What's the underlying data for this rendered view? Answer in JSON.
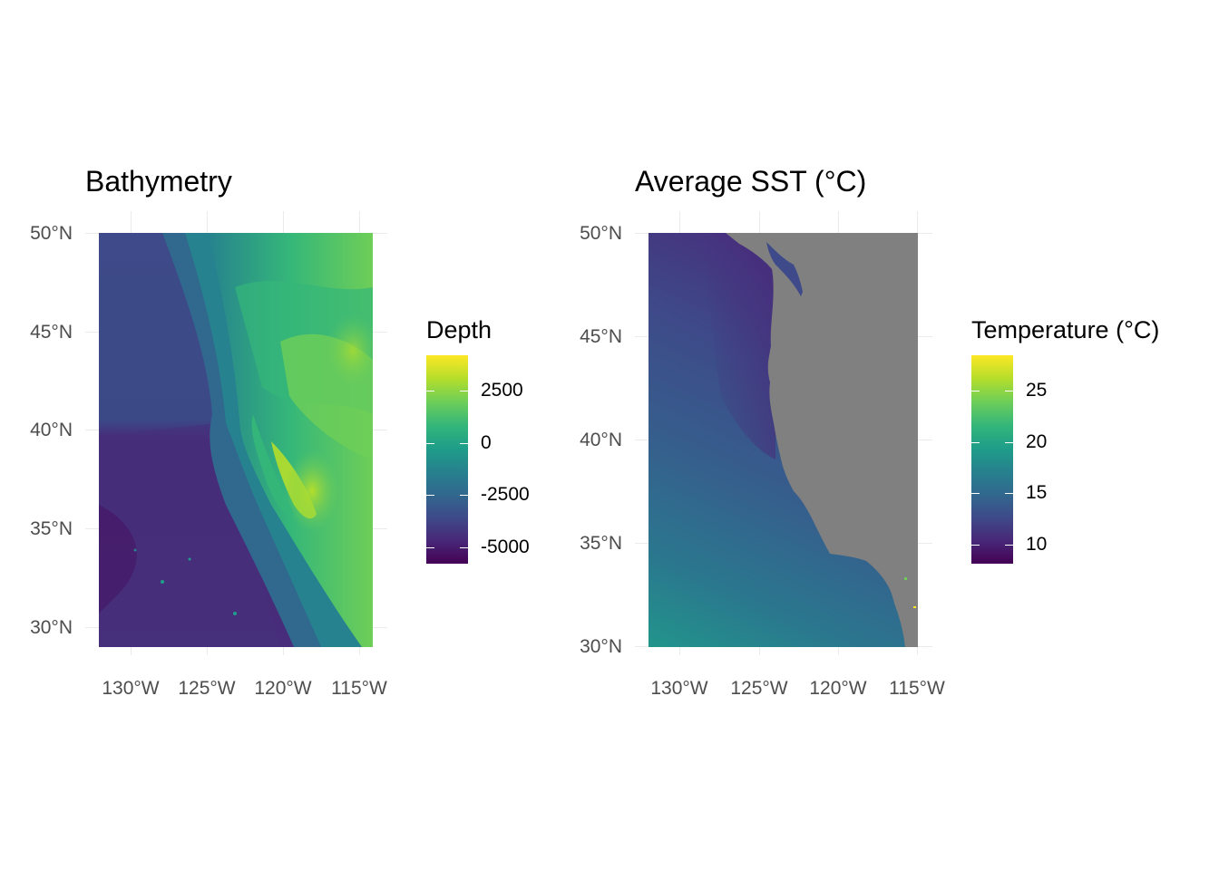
{
  "colors": {
    "viridis": [
      "#440154",
      "#482878",
      "#3e4a89",
      "#31688e",
      "#26828e",
      "#1f9e89",
      "#35b779",
      "#6ece58",
      "#b5de2b",
      "#fde725"
    ],
    "land": "#808080",
    "grid": "#ebebeb"
  },
  "left_map": {
    "title": "Bathymetry",
    "y_ticks": [
      "50°N",
      "45°N",
      "40°N",
      "35°N",
      "30°N"
    ],
    "x_ticks": [
      "130°W",
      "125°W",
      "120°W",
      "115°W"
    ],
    "legend": {
      "title": "Depth",
      "labels": [
        "2500",
        "0",
        "-2500",
        "-5000"
      ],
      "values": [
        2500,
        0,
        -2500,
        -5000
      ],
      "range": [
        -5800,
        4200
      ]
    }
  },
  "right_map": {
    "title": "Average SST (°C)",
    "y_ticks": [
      "50°N",
      "45°N",
      "40°N",
      "35°N",
      "30°N"
    ],
    "x_ticks": [
      "130°W",
      "125°W",
      "120°W",
      "115°W"
    ],
    "legend": {
      "title": "Temperature (°C)",
      "labels": [
        "25",
        "20",
        "15",
        "10"
      ],
      "values": [
        25,
        20,
        15,
        10
      ],
      "range": [
        8.1,
        28.5
      ]
    }
  }
}
